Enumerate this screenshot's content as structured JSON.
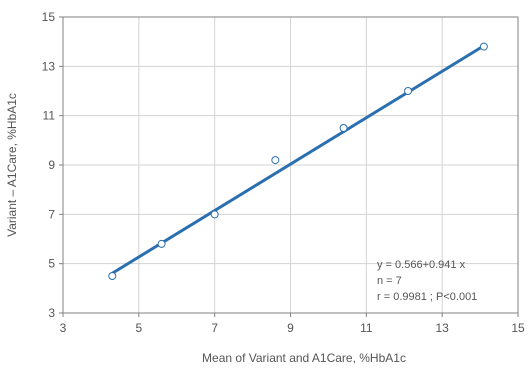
{
  "chart_data": {
    "type": "scatter",
    "xlabel": "Mean of Variant and A1Care, %HbA1c",
    "ylabel": "Variant – A1Care, %HbA1c",
    "xlim": [
      3,
      15
    ],
    "ylim": [
      3,
      15
    ],
    "xticks": [
      3,
      5,
      7,
      9,
      11,
      13,
      15
    ],
    "yticks": [
      3,
      5,
      7,
      9,
      11,
      13,
      15
    ],
    "grid": true,
    "points": [
      {
        "x": 4.3,
        "y": 4.5
      },
      {
        "x": 5.6,
        "y": 5.8
      },
      {
        "x": 7.0,
        "y": 7.0
      },
      {
        "x": 8.6,
        "y": 9.2
      },
      {
        "x": 10.4,
        "y": 10.5
      },
      {
        "x": 12.1,
        "y": 12.0
      },
      {
        "x": 14.1,
        "y": 13.8
      }
    ],
    "regression": {
      "intercept": 0.566,
      "slope": 0.941,
      "x_range": [
        4.3,
        14.1
      ]
    },
    "annotations": [
      "y = 0.566+0.941 x",
      "n = 7",
      "r = 0.9981 ; P<0.001"
    ],
    "colors": {
      "line": "#2a6fb0",
      "marker": "#2a6fb0",
      "grid": "#d3d3d3",
      "axis": "#808080"
    }
  }
}
